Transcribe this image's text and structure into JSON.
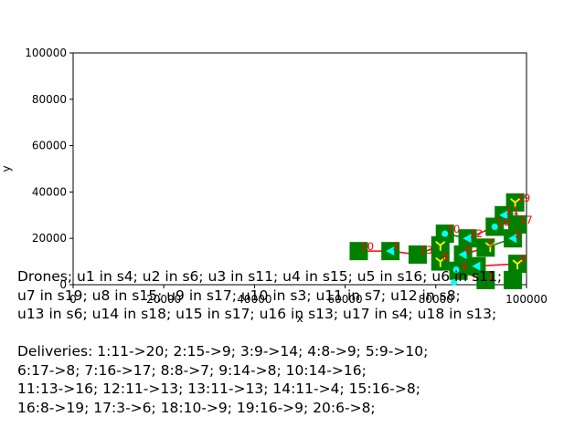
{
  "chart_data": {
    "type": "scatter",
    "xlabel": "x",
    "ylabel": "y",
    "xlim": [
      0,
      100000
    ],
    "ylim": [
      0,
      100000
    ],
    "xticks": [
      0,
      20000,
      40000,
      60000,
      80000,
      100000
    ],
    "yticks": [
      0,
      20000,
      40000,
      60000,
      80000,
      100000
    ],
    "colors": {
      "station": "#008000",
      "edge": "#ff0000",
      "route": "#008000",
      "drone": "#00ffff",
      "drone_alt": "#ffff00",
      "label": "#ff0000"
    },
    "stations": [
      {
        "x": 63000,
        "y": 14500,
        "label": "20"
      },
      {
        "x": 70000,
        "y": 14500,
        "label": "3"
      },
      {
        "x": 76000,
        "y": 13000,
        "label": "13"
      },
      {
        "x": 81000,
        "y": 17000,
        "label": ""
      },
      {
        "x": 81000,
        "y": 10000,
        "label": "8"
      },
      {
        "x": 82000,
        "y": 22000,
        "label": "10"
      },
      {
        "x": 86000,
        "y": 13000,
        "label": "6"
      },
      {
        "x": 87000,
        "y": 20000,
        "label": "12"
      },
      {
        "x": 85000,
        "y": 6000,
        "label": "4"
      },
      {
        "x": 89000,
        "y": 8000,
        "label": ""
      },
      {
        "x": 91000,
        "y": 16000,
        "label": "5"
      },
      {
        "x": 93000,
        "y": 25000,
        "label": "16"
      },
      {
        "x": 95000,
        "y": 30000,
        "label": "11"
      },
      {
        "x": 97500,
        "y": 35500,
        "label": "19"
      },
      {
        "x": 98000,
        "y": 26000,
        "label": "17"
      },
      {
        "x": 97000,
        "y": 20000,
        "label": "2"
      },
      {
        "x": 98000,
        "y": 9000,
        "label": "9"
      },
      {
        "x": 91000,
        "y": 2000,
        "label": "1"
      },
      {
        "x": 97000,
        "y": 2000,
        "label": ""
      }
    ],
    "routes": [
      {
        "from": [
          63000,
          14500
        ],
        "to": [
          70000,
          14500
        ]
      },
      {
        "from": [
          70000,
          14500
        ],
        "to": [
          76000,
          13000
        ]
      },
      {
        "from": [
          76000,
          13000
        ],
        "to": [
          81000,
          17000
        ]
      },
      {
        "from": [
          81000,
          10000
        ],
        "to": [
          89000,
          8000
        ]
      },
      {
        "from": [
          89000,
          8000
        ],
        "to": [
          98000,
          9000
        ]
      },
      {
        "from": [
          82000,
          22000
        ],
        "to": [
          87000,
          20000
        ]
      },
      {
        "from": [
          87000,
          20000
        ],
        "to": [
          93000,
          25000
        ]
      },
      {
        "from": [
          93000,
          25000
        ],
        "to": [
          97000,
          20000
        ]
      },
      {
        "from": [
          95000,
          30000
        ],
        "to": [
          97500,
          35500
        ]
      },
      {
        "from": [
          97500,
          35500
        ],
        "to": [
          98000,
          26000
        ]
      },
      {
        "from": [
          86000,
          13000
        ],
        "to": [
          91000,
          16000
        ]
      },
      {
        "from": [
          91000,
          16000
        ],
        "to": [
          97000,
          20000
        ]
      },
      {
        "from": [
          85000,
          6000
        ],
        "to": [
          91000,
          2000
        ]
      }
    ],
    "drones": [
      {
        "x": 70000,
        "y": 14500,
        "shape": "tri"
      },
      {
        "x": 81000,
        "y": 17000,
        "shape": "y"
      },
      {
        "x": 81000,
        "y": 10000,
        "shape": "y"
      },
      {
        "x": 82000,
        "y": 22000,
        "shape": "dot"
      },
      {
        "x": 86000,
        "y": 13000,
        "shape": "tri"
      },
      {
        "x": 87000,
        "y": 20000,
        "shape": "tri"
      },
      {
        "x": 84500,
        "y": 6500,
        "shape": "dot"
      },
      {
        "x": 89000,
        "y": 8000,
        "shape": "tri"
      },
      {
        "x": 93000,
        "y": 25000,
        "shape": "dot"
      },
      {
        "x": 95000,
        "y": 30000,
        "shape": "tri"
      },
      {
        "x": 97500,
        "y": 35500,
        "shape": "y"
      },
      {
        "x": 97000,
        "y": 20000,
        "shape": "tri"
      },
      {
        "x": 98000,
        "y": 9000,
        "shape": "y"
      },
      {
        "x": 84000,
        "y": 1000,
        "shape": "dot"
      },
      {
        "x": 92000,
        "y": 16500,
        "shape": "y"
      }
    ],
    "caption": "Drones; u1 in s4; u2 in s6; u3 in s11; u4 in s15; u5 in s16; u6 in s11;\nu7 in s19; u8 in s15; u9 in s17; u10 in s3; u11 in s7; u12 in s8;\nu13 in s6; u14 in s18; u15 in s17; u16 in s13; u17 in s4; u18 in s13;\n\nDeliveries: 1:11->20; 2:15->9; 3:9->14; 4:8->9; 5:9->10;\n6:17->8; 7:16->17; 8:8->7; 9:14->8; 10:14->16;\n11:13->16; 12:11->13; 13:11->13; 14:11->4; 15:16->8;\n16:8->19; 17:3->6; 18:10->9; 19:16->9; 20:6->8;"
  }
}
